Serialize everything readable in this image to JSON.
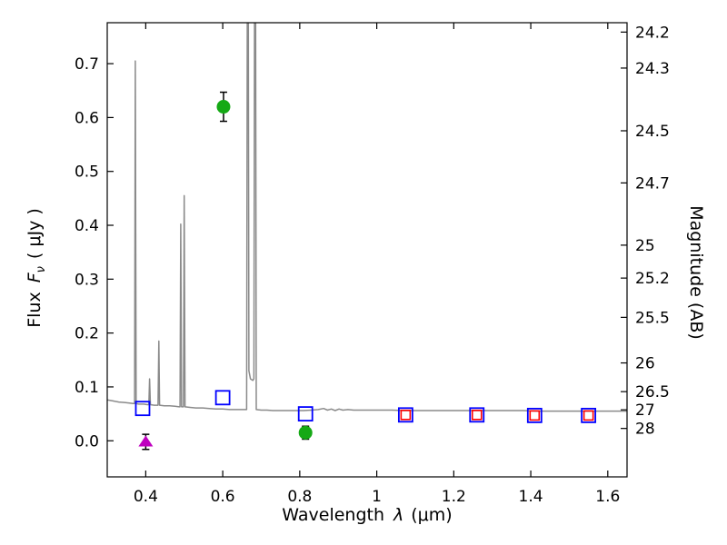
{
  "figure": {
    "background": "#ffffff",
    "frame_color": "#000000"
  },
  "axes": {
    "x": {
      "label_prefix": "Wavelength",
      "label_symbol": "λ",
      "label_unit": "(μm)",
      "ticks": [
        {
          "value": 0.4,
          "label": "0.4"
        },
        {
          "value": 0.6,
          "label": "0.6"
        },
        {
          "value": 0.8,
          "label": "0.8"
        },
        {
          "value": 1.0,
          "label": "1"
        },
        {
          "value": 1.2,
          "label": "1.2"
        },
        {
          "value": 1.4,
          "label": "1.4"
        },
        {
          "value": 1.6,
          "label": "1.6"
        }
      ]
    },
    "y_left": {
      "label_prefix": "Flux",
      "label_symbol": "F",
      "label_subscript": "ν",
      "label_unit": "( μJy )",
      "ticks": [
        {
          "value": 0.0,
          "label": "0.0"
        },
        {
          "value": 0.1,
          "label": "0.1"
        },
        {
          "value": 0.2,
          "label": "0.2"
        },
        {
          "value": 0.3,
          "label": "0.3"
        },
        {
          "value": 0.4,
          "label": "0.4"
        },
        {
          "value": 0.5,
          "label": "0.5"
        },
        {
          "value": 0.6,
          "label": "0.6"
        },
        {
          "value": 0.7,
          "label": "0.7"
        }
      ]
    },
    "y_right": {
      "label": "Magnitude (AB)",
      "ticks": [
        {
          "label": "24.2",
          "flux": 0.7586
        },
        {
          "label": "24.3",
          "flux": 0.6918
        },
        {
          "label": "24.5",
          "flux": 0.5754
        },
        {
          "label": "24.7",
          "flux": 0.4786
        },
        {
          "label": "25",
          "flux": 0.3631
        },
        {
          "label": "25.2",
          "flux": 0.302
        },
        {
          "label": "25.5",
          "flux": 0.2291
        },
        {
          "label": "26",
          "flux": 0.1445
        },
        {
          "label": "26.5",
          "flux": 0.0912
        },
        {
          "label": "27",
          "flux": 0.0575
        },
        {
          "label": "28",
          "flux": 0.0229
        }
      ]
    }
  },
  "chart_data": {
    "type": "line",
    "title": "",
    "xlabel": "Wavelength λ (μm)",
    "ylabel_left": "Flux Fν ( μJy )",
    "ylabel_right": "Magnitude (AB)",
    "xlim": [
      0.3,
      1.65
    ],
    "ylim": [
      -0.067,
      0.776
    ],
    "grid": false,
    "legend": false,
    "series": [
      {
        "name": "model-spectrum",
        "type": "line",
        "color": "#8a8a8a",
        "width": 1.5,
        "points": [
          [
            0.3,
            0.076
          ],
          [
            0.315,
            0.074
          ],
          [
            0.33,
            0.072
          ],
          [
            0.345,
            0.071
          ],
          [
            0.358,
            0.07
          ],
          [
            0.368,
            0.069
          ],
          [
            0.371,
            0.069
          ],
          [
            0.373,
            0.705
          ],
          [
            0.375,
            0.069
          ],
          [
            0.382,
            0.068
          ],
          [
            0.395,
            0.068
          ],
          [
            0.404,
            0.067
          ],
          [
            0.408,
            0.067
          ],
          [
            0.41,
            0.115
          ],
          [
            0.412,
            0.067
          ],
          [
            0.422,
            0.066
          ],
          [
            0.432,
            0.066
          ],
          [
            0.434,
            0.185
          ],
          [
            0.436,
            0.066
          ],
          [
            0.448,
            0.065
          ],
          [
            0.462,
            0.065
          ],
          [
            0.476,
            0.064
          ],
          [
            0.487,
            0.063
          ],
          [
            0.489,
            0.063
          ],
          [
            0.491,
            0.402
          ],
          [
            0.493,
            0.063
          ],
          [
            0.498,
            0.063
          ],
          [
            0.5,
            0.455
          ],
          [
            0.502,
            0.063
          ],
          [
            0.515,
            0.062
          ],
          [
            0.53,
            0.061
          ],
          [
            0.548,
            0.061
          ],
          [
            0.565,
            0.06
          ],
          [
            0.582,
            0.059
          ],
          [
            0.6,
            0.059
          ],
          [
            0.618,
            0.058
          ],
          [
            0.636,
            0.058
          ],
          [
            0.652,
            0.058
          ],
          [
            0.66,
            0.058
          ],
          [
            0.662,
            0.058
          ],
          [
            0.665,
            1.4
          ],
          [
            0.668,
            0.13
          ],
          [
            0.672,
            0.115
          ],
          [
            0.678,
            0.112
          ],
          [
            0.681,
            0.115
          ],
          [
            0.684,
            1.4
          ],
          [
            0.687,
            0.058
          ],
          [
            0.7,
            0.057
          ],
          [
            0.715,
            0.057
          ],
          [
            0.73,
            0.056
          ],
          [
            0.75,
            0.056
          ],
          [
            0.77,
            0.056
          ],
          [
            0.79,
            0.056
          ],
          [
            0.81,
            0.056
          ],
          [
            0.83,
            0.057
          ],
          [
            0.848,
            0.058
          ],
          [
            0.862,
            0.06
          ],
          [
            0.872,
            0.057
          ],
          [
            0.882,
            0.059
          ],
          [
            0.892,
            0.056
          ],
          [
            0.902,
            0.059
          ],
          [
            0.912,
            0.057
          ],
          [
            0.925,
            0.058
          ],
          [
            0.94,
            0.057
          ],
          [
            0.96,
            0.057
          ],
          [
            0.985,
            0.057
          ],
          [
            1.01,
            0.057
          ],
          [
            1.04,
            0.057
          ],
          [
            1.07,
            0.056
          ],
          [
            1.1,
            0.056
          ],
          [
            1.14,
            0.056
          ],
          [
            1.18,
            0.056
          ],
          [
            1.22,
            0.056
          ],
          [
            1.26,
            0.056
          ],
          [
            1.3,
            0.056
          ],
          [
            1.34,
            0.056
          ],
          [
            1.38,
            0.056
          ],
          [
            1.42,
            0.055
          ],
          [
            1.46,
            0.055
          ],
          [
            1.5,
            0.055
          ],
          [
            1.54,
            0.055
          ],
          [
            1.58,
            0.055
          ],
          [
            1.62,
            0.055
          ],
          [
            1.65,
            0.055
          ]
        ]
      },
      {
        "name": "model-photometry-broadband",
        "type": "scatter",
        "marker": "open-square",
        "color": "#0000ff",
        "size": 15,
        "points": [
          [
            0.392,
            0.06
          ],
          [
            0.6,
            0.08
          ],
          [
            0.815,
            0.05
          ],
          [
            1.075,
            0.048
          ],
          [
            1.26,
            0.048
          ],
          [
            1.41,
            0.047
          ],
          [
            1.55,
            0.047
          ]
        ]
      },
      {
        "name": "model-photometry-narrow",
        "type": "scatter",
        "marker": "open-square",
        "color": "#ff0000",
        "size": 10,
        "points": [
          [
            1.075,
            0.048
          ],
          [
            1.26,
            0.048
          ],
          [
            1.41,
            0.047
          ],
          [
            1.55,
            0.047
          ]
        ]
      },
      {
        "name": "observed-photometry",
        "type": "scatter",
        "marker": "circle",
        "color": "#15a915",
        "size": 15,
        "points": [
          {
            "x": 0.602,
            "y": 0.62,
            "yerr": 0.027
          },
          {
            "x": 0.815,
            "y": 0.015,
            "yerr": 0.012
          }
        ]
      },
      {
        "name": "upper-limit",
        "type": "scatter",
        "marker": "triangle-up",
        "color": "#bf00bf",
        "size": 14,
        "points": [
          {
            "x": 0.4,
            "y": -0.002,
            "yerr": 0.014
          }
        ]
      }
    ]
  }
}
